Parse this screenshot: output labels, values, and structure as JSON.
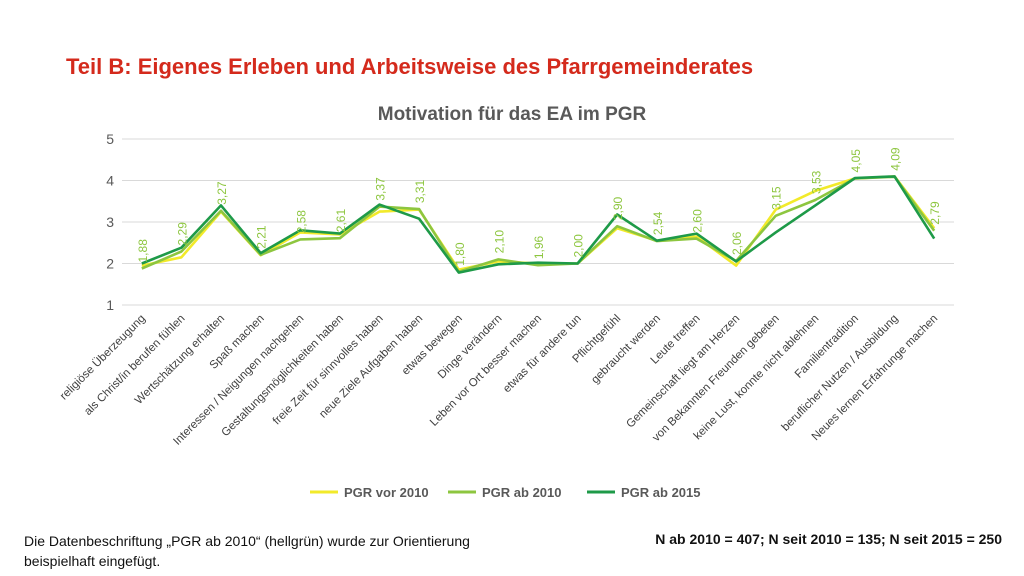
{
  "heading": "Teil B: Eigenes Erleben und Arbeitsweise des Pfarrgemeinderates",
  "colors": {
    "heading": "#d42a1c",
    "pgr_vor_2010": "#f2ea2a",
    "pgr_ab_2010": "#8dc63f",
    "pgr_ab_2015": "#1e9a48"
  },
  "chart_data": {
    "type": "line",
    "title": "Motivation für das EA im PGR",
    "xlabel": "",
    "ylabel": "",
    "ylim": [
      1,
      5
    ],
    "yticks": [
      "1",
      "2",
      "3",
      "4",
      "5"
    ],
    "grid": true,
    "legend_position": "bottom",
    "categories": [
      "religiöse Überzeugung",
      "als Christ/in berufen fühlen",
      "Wertschätzung erhalten",
      "Spaß machen",
      "Interessen / Neigungen nachgehen",
      "Gestaltungsmöglichkeiten haben",
      "freie Zeit für sinnvolles haben",
      "neue Ziele Aufgaben haben",
      "etwas bewegen",
      "Dinge verändern",
      "Leben vor Ort besser machen",
      "etwas für andere tun",
      "Pflichtgefühl",
      "gebraucht werden",
      "Leute treffen",
      "Gemeinschaft liegt am Herzen",
      "von Bekannten Freunden gebeten",
      "keine Lust, konnte nicht ablehnen",
      "Familientradition",
      "beruflicher Nutzen / Ausbildung",
      "Neues lernen Erfahrunge machen"
    ],
    "series": [
      {
        "name": "PGR vor 2010",
        "color": "#f2ea2a",
        "values": [
          1.95,
          2.15,
          3.25,
          2.2,
          2.75,
          2.7,
          3.25,
          3.3,
          1.85,
          2.05,
          2.0,
          2.0,
          2.85,
          2.55,
          2.65,
          1.95,
          3.3,
          3.75,
          4.05,
          4.1,
          2.85
        ]
      },
      {
        "name": "PGR ab 2010",
        "color": "#8dc63f",
        "values": [
          1.88,
          2.29,
          3.27,
          2.21,
          2.58,
          2.61,
          3.37,
          3.31,
          1.8,
          2.1,
          1.96,
          2.0,
          2.9,
          2.54,
          2.6,
          2.06,
          3.15,
          3.53,
          4.05,
          4.09,
          2.79
        ]
      },
      {
        "name": "PGR ab 2015",
        "color": "#1e9a48",
        "values": [
          2.0,
          2.38,
          3.4,
          2.25,
          2.8,
          2.72,
          3.42,
          3.08,
          1.78,
          1.98,
          2.02,
          2.0,
          3.18,
          2.55,
          2.72,
          2.05,
          2.75,
          3.4,
          4.06,
          4.1,
          2.6
        ]
      }
    ],
    "data_labels": [
      "1,88",
      "2,29",
      "3,27",
      "2,21",
      "2,58",
      "2,61",
      "3,37",
      "3,31",
      "1,80",
      "2,10",
      "1,96",
      "2,00",
      "2,90",
      "2,54",
      "2,60",
      "2,06",
      "3,15",
      "3,53",
      "4,05",
      "4,09",
      "2,79"
    ],
    "data_label_series": "PGR ab 2010"
  },
  "footnote": "Die Datenbeschriftung „PGR ab 2010“ (hellgrün) wurde zur Orientierung beispielhaft eingefügt.",
  "sample_note": "N ab 2010 = 407; N seit 2010 = 135; N seit 2015 = 250"
}
